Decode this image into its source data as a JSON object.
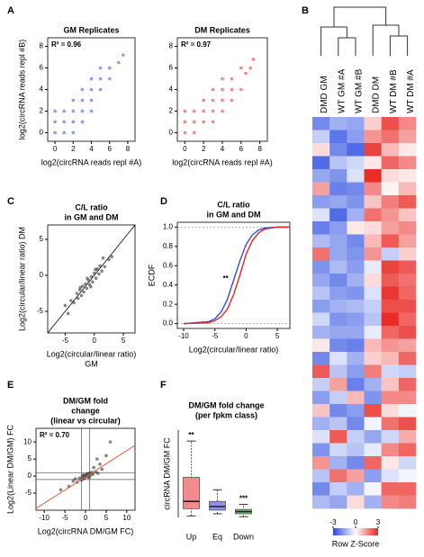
{
  "panel_labels": [
    "A",
    "B",
    "C",
    "D",
    "E",
    "F"
  ],
  "chart_data": [
    {
      "type": "scatter",
      "title": "GM Replicates",
      "annotation": "R² = 0.96",
      "xlabel": "log2(circRNA reads  repl #A)",
      "ylabel": "log2(circRNA reads  repl #B)",
      "x": [
        0,
        0,
        0,
        1,
        1,
        1,
        2,
        2,
        2,
        2,
        3,
        3,
        3,
        3,
        4,
        4,
        4,
        4,
        5,
        5,
        5,
        6,
        6,
        7,
        7.5
      ],
      "y": [
        0,
        1,
        2,
        0,
        1,
        2,
        1,
        2,
        3,
        0,
        2,
        3,
        4,
        1,
        3,
        4,
        5,
        2,
        4,
        5,
        6,
        5,
        6,
        6.5,
        7.2
      ],
      "color": "#3f5ee0",
      "xlim": [
        -0.8,
        8.8
      ],
      "ylim": [
        -0.8,
        8.8
      ],
      "xticks": [
        0,
        2,
        4,
        6,
        8
      ],
      "yticks": [
        0,
        2,
        4,
        6,
        8
      ]
    },
    {
      "type": "scatter",
      "title": "DM Replicates",
      "annotation": "R² = 0.97",
      "xlabel": "log2(circRNA reads  repl #A)",
      "x": [
        0,
        0,
        0,
        1,
        1,
        1,
        2,
        2,
        2,
        3,
        3,
        3,
        3,
        4,
        4,
        4,
        4,
        5,
        5,
        5,
        6,
        6,
        6.5,
        7,
        7.3
      ],
      "y": [
        0,
        1,
        2,
        0,
        1,
        2,
        1,
        2,
        3,
        1,
        2,
        3,
        4,
        2,
        3,
        4,
        5,
        3,
        4,
        5,
        4,
        6,
        5.5,
        6,
        6.8
      ],
      "color": "#e83a3a",
      "xlim": [
        -0.8,
        8.8
      ],
      "ylim": [
        -0.8,
        8.8
      ],
      "xticks": [
        0,
        2,
        4,
        6,
        8
      ],
      "yticks": [
        0,
        2,
        4,
        6,
        8
      ]
    },
    {
      "type": "scatter",
      "title": [
        "C/L ratio",
        "in GM and DM"
      ],
      "xlabel": [
        "Log2(circular/linear  ratio)",
        "GM"
      ],
      "ylabel": "Log2(circular/linear  ratio) DM",
      "x": [
        -4,
        -3.5,
        -3,
        -2.8,
        -2.5,
        -2.2,
        -2,
        -1.8,
        -1.5,
        -1.3,
        -1,
        -0.8,
        -0.5,
        -0.3,
        0,
        0.3,
        0.5,
        0.8,
        1,
        1.3,
        1.8,
        2.5,
        -5,
        -4.5,
        -1.2,
        -0.6,
        0.2,
        -2.4,
        1.5,
        3
      ],
      "y": [
        -3.5,
        -3.8,
        -2.5,
        -3.2,
        -2.0,
        -2.8,
        -1.5,
        -2.3,
        -1.2,
        -1.8,
        -0.7,
        -1.3,
        -0.2,
        -0.9,
        0.3,
        -0.4,
        0.9,
        0.2,
        1.3,
        0.6,
        1.2,
        2.2,
        -4.2,
        -5.3,
        -0.4,
        -1.6,
        0.8,
        -1.7,
        2.4,
        2.6
      ],
      "color": "#333333",
      "xlim": [
        -8,
        7
      ],
      "ylim": [
        -8,
        7
      ],
      "xticks": [
        -5,
        0,
        5
      ],
      "yticks": [
        -5,
        0,
        5
      ],
      "diagonal": true
    },
    {
      "type": "line",
      "title": [
        "C/L ratio",
        "in GM and DM"
      ],
      "xlabel": "Log2(circular/linear  ratio)",
      "ylabel": "ECDF",
      "annotation": "**",
      "x": [
        -10,
        -6,
        -5,
        -4,
        -3,
        -2,
        -1,
        0,
        1,
        2,
        3,
        5,
        7
      ],
      "series": [
        {
          "color": "#2f4fe0",
          "values": [
            0,
            0.02,
            0.05,
            0.12,
            0.25,
            0.45,
            0.65,
            0.82,
            0.92,
            0.97,
            0.99,
            1,
            1
          ]
        },
        {
          "color": "#e02a2a",
          "values": [
            0,
            0.01,
            0.03,
            0.07,
            0.15,
            0.3,
            0.5,
            0.72,
            0.86,
            0.94,
            0.98,
            1,
            1
          ]
        }
      ],
      "xlim": [
        -11,
        7
      ],
      "ylim": [
        -0.05,
        1.05
      ],
      "xticks": [
        -10,
        -5,
        0,
        5
      ],
      "yticks": [
        {
          "value": 0,
          "label": "0.0"
        },
        {
          "value": 0.2,
          "label": "0.2"
        },
        {
          "value": 0.4,
          "label": "0.4"
        },
        {
          "value": 0.6,
          "label": "0.6"
        },
        {
          "value": 0.8,
          "label": "0.8"
        },
        {
          "value": 1,
          "label": "1.0"
        }
      ]
    },
    {
      "type": "scatter",
      "title": [
        "DM/GM fold",
        "change",
        "(linear vs circular)"
      ],
      "annotation": "R² = 0.70",
      "xlabel": "Log2(circRNA DM/GM FC)",
      "ylabel": "Log2(Linear  DM/GM) FC",
      "x": [
        -6,
        -4,
        -3,
        -2,
        -1.5,
        -1,
        -0.8,
        -0.5,
        -0.3,
        0,
        0.2,
        0.5,
        0.8,
        1,
        1.2,
        1.5,
        2,
        2.5,
        3,
        3.5,
        4,
        5,
        -0.2,
        0.4,
        -0.6,
        0.9,
        1.8,
        -2.5,
        6,
        2.8
      ],
      "y": [
        -4,
        -3,
        -1.5,
        -1.8,
        -0.6,
        -1.2,
        -0.3,
        -0.8,
        0.2,
        0,
        0.4,
        -0.2,
        0.6,
        0.9,
        0.3,
        1.1,
        2.5,
        1.2,
        0.8,
        3.5,
        2,
        6,
        -0.5,
        0.7,
        0.3,
        -0.4,
        0.5,
        -0.8,
        10,
        5
      ],
      "color": "#333333",
      "xlim": [
        -12,
        12
      ],
      "ylim": [
        -10,
        14
      ],
      "xticks": [
        -10,
        -5,
        0,
        5,
        10
      ],
      "yticks": [
        -5,
        0,
        5,
        10
      ],
      "fit": {
        "x": [
          -12,
          12
        ],
        "y": [
          -9.5,
          9
        ]
      },
      "fit_color": "#e8603c",
      "thresholds": [
        -1,
        1
      ]
    },
    {
      "type": "box",
      "title": [
        "DM/GM fold change",
        "(per fpkm class)"
      ],
      "ylabel": "circRNA DM/GM FC",
      "categories": [
        "Up",
        "Eq",
        "Down"
      ],
      "boxes": [
        {
          "low": 0.2,
          "q1": 1.2,
          "median": 2.2,
          "q3": 5.5,
          "high": 10.5
        },
        {
          "low": 0.5,
          "q1": 1.0,
          "median": 1.5,
          "q3": 2.2,
          "high": 3.8
        },
        {
          "low": 0.1,
          "q1": 0.5,
          "median": 0.8,
          "q3": 1.1,
          "high": 1.8
        }
      ],
      "colors": [
        "#f28b8b",
        "#8f8ff0",
        "#5fd35f"
      ],
      "annotations": [
        "**",
        "***"
      ],
      "ylim": [
        0,
        12
      ]
    },
    {
      "type": "heatmap",
      "columns": [
        "DMD GM",
        "WT GM #A",
        "WT GM #B",
        "DMD DM",
        "WT DM #B",
        "WT DM #A"
      ],
      "rows": [
        [
          -1.2,
          -0.8,
          -0.9,
          0.4,
          1.5,
          1.0
        ],
        [
          -0.5,
          -1.4,
          -1.0,
          0.9,
          1.2,
          0.8
        ],
        [
          0.3,
          -1.2,
          -1.5,
          1.6,
          0.6,
          0.2
        ],
        [
          -1.5,
          -0.6,
          -0.4,
          0.2,
          1.3,
          1.0
        ],
        [
          -0.9,
          -1.1,
          -0.3,
          1.8,
          0.3,
          0.2
        ],
        [
          0.8,
          -1.3,
          -1.2,
          1.0,
          0.1,
          0.6
        ],
        [
          -1.0,
          -0.9,
          -1.1,
          0.5,
          1.1,
          1.4
        ],
        [
          -0.3,
          -1.5,
          -0.8,
          1.2,
          0.9,
          0.5
        ],
        [
          -1.3,
          -1.0,
          0.2,
          0.3,
          0.8,
          1.0
        ],
        [
          -0.7,
          -0.9,
          -1.2,
          0.6,
          1.4,
          0.8
        ],
        [
          1.2,
          -0.9,
          -1.1,
          0.9,
          -0.5,
          0.4
        ],
        [
          -1.1,
          -0.7,
          -1.0,
          -0.2,
          1.6,
          1.4
        ],
        [
          -0.9,
          -1.2,
          -0.8,
          0.3,
          1.4,
          1.2
        ],
        [
          -0.6,
          -1.0,
          -1.1,
          -0.3,
          1.7,
          1.3
        ],
        [
          -1.0,
          -0.8,
          -0.7,
          -0.5,
          1.5,
          1.5
        ],
        [
          -0.4,
          -1.1,
          -1.0,
          -0.6,
          1.8,
          1.3
        ],
        [
          -0.8,
          -0.9,
          -0.9,
          -0.2,
          1.3,
          1.5
        ],
        [
          0.2,
          -1.2,
          -1.3,
          0.6,
          0.9,
          0.8
        ],
        [
          -1.2,
          -0.3,
          -0.8,
          0.4,
          0.6,
          1.3
        ],
        [
          1.4,
          -0.6,
          -1.0,
          1.1,
          -0.4,
          -0.5
        ],
        [
          -0.5,
          0.8,
          -1.3,
          -0.8,
          0.5,
          1.3
        ],
        [
          -1.0,
          -0.5,
          0.6,
          -1.1,
          1.0,
          1.0
        ],
        [
          0.5,
          -1.2,
          -1.0,
          1.5,
          0.3,
          -0.1
        ],
        [
          -0.8,
          -0.6,
          -1.2,
          -0.1,
          1.2,
          1.5
        ],
        [
          -0.3,
          1.4,
          -0.5,
          -0.9,
          -0.4,
          0.7
        ],
        [
          -1.1,
          -0.4,
          -0.6,
          -0.2,
          1.0,
          1.3
        ],
        [
          0.9,
          -0.8,
          -1.2,
          1.3,
          0.2,
          -0.4
        ],
        [
          -0.6,
          1.2,
          0.8,
          -1.0,
          -0.3,
          -0.1
        ],
        [
          -1.2,
          -0.5,
          -0.8,
          -0.1,
          1.3,
          1.3
        ],
        [
          -0.7,
          -0.9,
          0.3,
          -0.8,
          1.0,
          1.1
        ]
      ],
      "clim": [
        -3,
        3
      ],
      "colorbar_ticks": [
        -3,
        0,
        3
      ],
      "colorbar_label": "Row Z-Score",
      "colors": [
        "#2548e0",
        "#ffffff",
        "#e8231e"
      ]
    }
  ]
}
